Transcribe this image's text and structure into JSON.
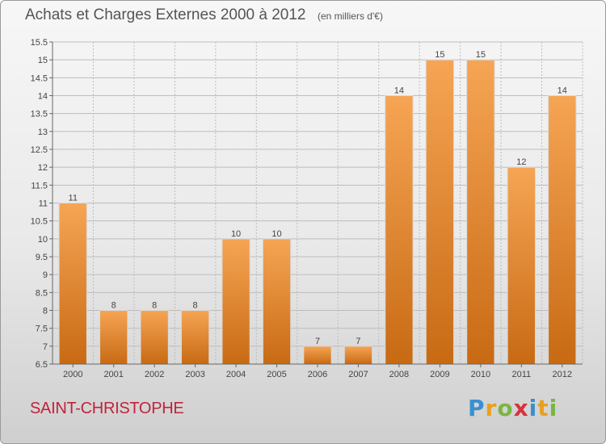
{
  "header": {
    "title": "Achats et Charges Externes 2000 à 2012",
    "unit": "(en milliers d'€)"
  },
  "footer": {
    "commune": "SAINT-CHRISTOPHE",
    "logo_text": "Proxiti"
  },
  "colors": {
    "bar_top": "#f6a554",
    "bar_bottom": "#c86a14",
    "grid": "#bdbdbd",
    "commune_text": "#c0233b"
  },
  "chart_data": {
    "type": "bar",
    "title": "Achats et Charges Externes 2000 à 2012",
    "subtitle": "(en milliers d'€)",
    "categories": [
      "2000",
      "2001",
      "2002",
      "2003",
      "2004",
      "2005",
      "2006",
      "2007",
      "2008",
      "2009",
      "2010",
      "2011",
      "2012"
    ],
    "values": [
      11,
      8,
      8,
      8,
      10,
      10,
      7,
      7,
      14,
      15,
      15,
      12,
      14
    ],
    "data_labels": [
      "11",
      "8",
      "8",
      "8",
      "10",
      "10",
      "7",
      "7",
      "14",
      "15",
      "15",
      "12",
      "14"
    ],
    "ylim": [
      6.5,
      15.5
    ],
    "yticks": [
      6.5,
      7,
      7.5,
      8,
      8.5,
      9,
      9.5,
      10,
      10.5,
      11,
      11.5,
      12,
      12.5,
      13,
      13.5,
      14,
      14.5,
      15,
      15.5
    ],
    "ytick_labels": [
      "6.5",
      "7",
      "7.5",
      "8",
      "8.5",
      "9",
      "9.5",
      "10",
      "10.5",
      "11",
      "11.5",
      "12",
      "12.5",
      "13",
      "13.5",
      "14",
      "14.5",
      "15",
      "15.5"
    ],
    "grid": true,
    "legend": "none"
  }
}
